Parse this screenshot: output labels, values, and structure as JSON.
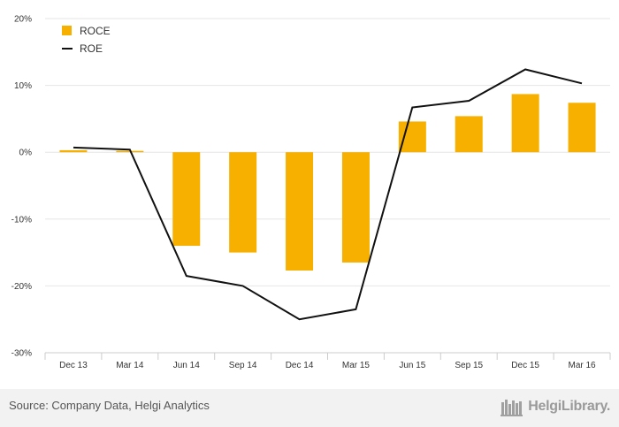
{
  "chart_data": {
    "type": "bar+line",
    "categories": [
      "Dec 13",
      "Mar 14",
      "Jun 14",
      "Sep 14",
      "Dec 14",
      "Mar 15",
      "Jun 15",
      "Sep 15",
      "Dec 15",
      "Mar 16"
    ],
    "series": [
      {
        "name": "ROCE",
        "type": "bar",
        "color": "#f7b000",
        "values": [
          0.3,
          0.2,
          -14.0,
          -15.0,
          -17.7,
          -16.5,
          4.6,
          5.4,
          8.7,
          7.4
        ]
      },
      {
        "name": "ROE",
        "type": "line",
        "color": "#111111",
        "values": [
          0.7,
          0.4,
          -18.5,
          -20.0,
          -25.0,
          -23.5,
          6.7,
          7.7,
          12.4,
          10.3
        ]
      }
    ],
    "y_ticks": [
      "20%",
      "10%",
      "0%",
      "-10%",
      "-20%",
      "-30%"
    ],
    "ylim": [
      -30,
      20
    ],
    "grid": true,
    "legend_position": "top-left"
  },
  "footer": {
    "source": "Source: Company Data, Helgi Analytics",
    "brand": "HelgiLibrary."
  }
}
